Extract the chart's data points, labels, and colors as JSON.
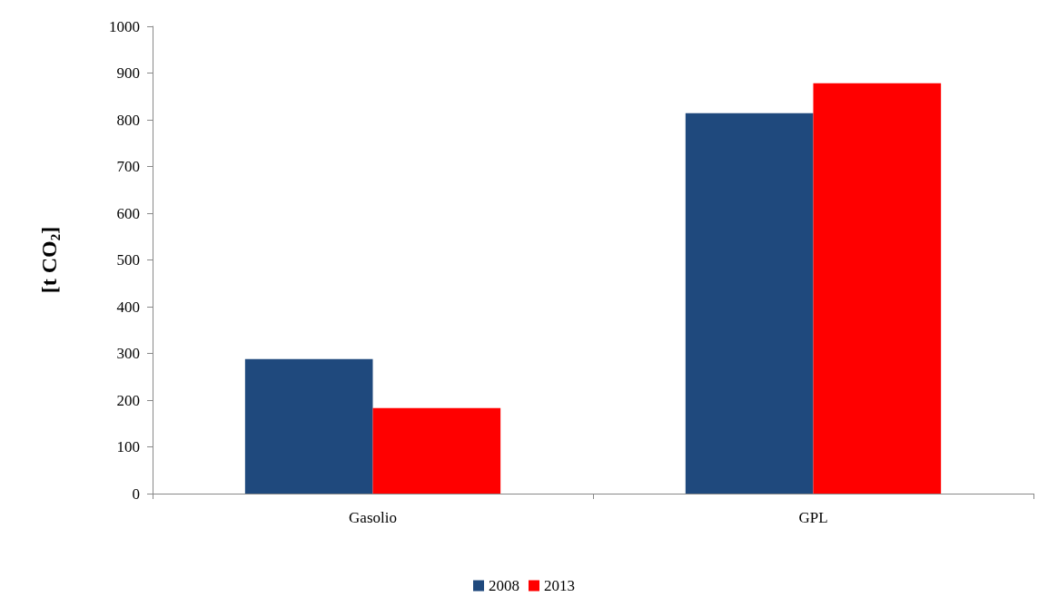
{
  "chart_data": {
    "type": "bar",
    "ylabel": "[t CO$_{2}$]",
    "categories": [
      "Gasolio",
      "GPL"
    ],
    "series": [
      {
        "name": "2008",
        "color": "#1f497d",
        "values": [
          288,
          814
        ]
      },
      {
        "name": "2013",
        "color": "#ff0000",
        "values": [
          183,
          878
        ]
      }
    ],
    "ylim": [
      0,
      1000
    ],
    "yticks": [
      0,
      100,
      200,
      300,
      400,
      500,
      600,
      700,
      800,
      900,
      1000
    ],
    "grid": false,
    "legend": "bottom"
  }
}
